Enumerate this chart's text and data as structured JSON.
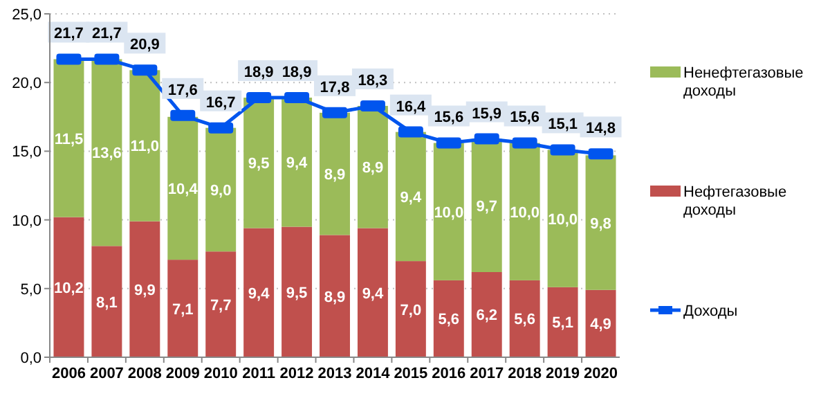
{
  "chart_data": {
    "type": "bar",
    "stacked": true,
    "categories": [
      "2006",
      "2007",
      "2008",
      "2009",
      "2010",
      "2011",
      "2012",
      "2013",
      "2014",
      "2015",
      "2016",
      "2017",
      "2018",
      "2019",
      "2020"
    ],
    "ylim": [
      0,
      25
    ],
    "yticks": [
      {
        "value": 0,
        "label": "0,0"
      },
      {
        "value": 5,
        "label": "5,0"
      },
      {
        "value": 10,
        "label": "10,0"
      },
      {
        "value": 15,
        "label": "15,0"
      },
      {
        "value": 20,
        "label": "20,0"
      },
      {
        "value": 25,
        "label": "25,0"
      }
    ],
    "grid": "y",
    "legend": "right",
    "marker": "square",
    "line_style": "solid",
    "series": [
      {
        "name": "Нефтегазовые доходы",
        "color": "#c0504d",
        "values": [
          10.2,
          8.1,
          9.9,
          7.1,
          7.7,
          9.4,
          9.5,
          8.9,
          9.4,
          7.0,
          5.6,
          6.2,
          5.6,
          5.1,
          4.9
        ],
        "value_labels": [
          "10,2",
          "8,1",
          "9,9",
          "7,1",
          "7,7",
          "9,4",
          "9,5",
          "8,9",
          "9,4",
          "7,0",
          "5,6",
          "6,2",
          "5,6",
          "5,1",
          "4,9"
        ]
      },
      {
        "name": "Ненефтегазовые доходы",
        "color": "#9bbb59",
        "values": [
          11.5,
          13.6,
          11.0,
          10.4,
          9.0,
          9.5,
          9.4,
          8.9,
          8.9,
          9.4,
          10.0,
          9.7,
          10.0,
          10.0,
          9.8
        ],
        "value_labels": [
          "11,5",
          "13,6",
          "11,0",
          "10,4",
          "9,0",
          "9,5",
          "9,4",
          "8,9",
          "8,9",
          "9,4",
          "10,0",
          "9,7",
          "10,0",
          "10,0",
          "9,8"
        ]
      },
      {
        "name": "Доходы",
        "type": "line",
        "color": "#0055ee",
        "values": [
          21.7,
          21.7,
          20.9,
          17.6,
          16.7,
          18.9,
          18.9,
          17.8,
          18.3,
          16.4,
          15.6,
          15.9,
          15.6,
          15.1,
          14.8
        ],
        "value_labels": [
          "21,7",
          "21,7",
          "20,9",
          "17,6",
          "16,7",
          "18,9",
          "18,9",
          "17,8",
          "18,3",
          "16,4",
          "15,6",
          "15,9",
          "15,6",
          "15,1",
          "14,8"
        ]
      }
    ]
  }
}
